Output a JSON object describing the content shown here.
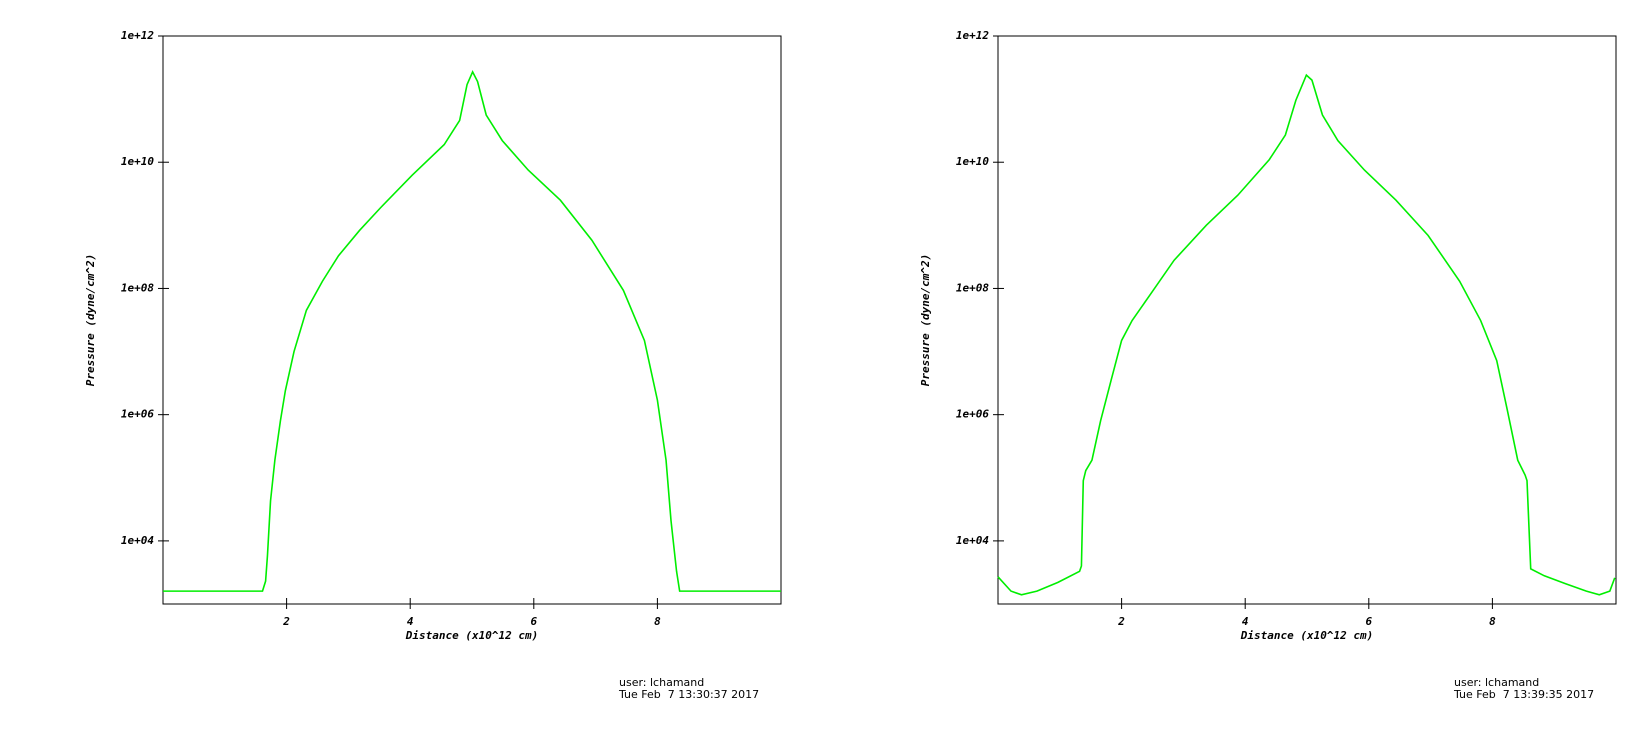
{
  "chart_data": [
    {
      "type": "line",
      "xlabel": "Distance (x10^12 cm)",
      "ylabel": "Pressure (dyne/cm^2)",
      "log_y": true,
      "xlim": [
        0,
        10
      ],
      "ylim": [
        1000,
        1000000000000.0
      ],
      "xticks": [
        2,
        4,
        6,
        8
      ],
      "yticks": [
        {
          "value": 10000,
          "label": "1e+04"
        },
        {
          "value": 1000000,
          "label": "1e+06"
        },
        {
          "value": 100000000,
          "label": "1e+08"
        },
        {
          "value": 10000000000,
          "label": "1e+10"
        },
        {
          "value": 1000000000000,
          "label": "1e+12"
        }
      ],
      "x": [
        0,
        1.61,
        1.66,
        1.69,
        1.74,
        1.81,
        1.9,
        1.98,
        2.12,
        2.32,
        2.58,
        2.84,
        3.18,
        3.52,
        4.03,
        4.55,
        4.8,
        4.92,
        5.01,
        5.09,
        5.23,
        5.49,
        5.91,
        6.43,
        6.94,
        7.45,
        7.79,
        8.0,
        8.14,
        8.22,
        8.31,
        8.36,
        10
      ],
      "series": [
        {
          "color": "#00ee00",
          "values": [
            1600,
            1600,
            2300,
            5800,
            43000,
            190000,
            800000,
            2400000,
            10000000,
            45000000,
            130000000,
            330000000,
            830000000,
            1900000000,
            6200000000,
            19000000000,
            46000000000,
            170000000000,
            270000000000,
            190000000000,
            56000000000,
            22000000000,
            7500000000,
            2500000000,
            580000000,
            93000000,
            15000000,
            1700000,
            190000,
            21000,
            3300,
            1600,
            1600
          ]
        }
      ],
      "user": "user: lchamand",
      "timestamp": "Tue Feb  7 13:30:37 2017"
    },
    {
      "type": "line",
      "xlabel": "Distance (x10^12 cm)",
      "ylabel": "Pressure (dyne/cm^2)",
      "log_y": true,
      "xlim": [
        0,
        10
      ],
      "ylim": [
        1000,
        1000000000000.0
      ],
      "xticks": [
        2,
        4,
        6,
        8
      ],
      "yticks": [
        {
          "value": 10000,
          "label": "1e+04"
        },
        {
          "value": 1000000,
          "label": "1e+06"
        },
        {
          "value": 100000000,
          "label": "1e+08"
        },
        {
          "value": 10000000000,
          "label": "1e+10"
        },
        {
          "value": 1000000000000,
          "label": "1e+12"
        }
      ],
      "x": [
        0,
        0.21,
        0.38,
        0.63,
        0.97,
        1.32,
        1.35,
        1.38,
        1.42,
        1.52,
        1.66,
        1.83,
        2.0,
        2.17,
        2.51,
        2.85,
        3.37,
        3.88,
        4.39,
        4.65,
        4.82,
        4.99,
        5.08,
        5.25,
        5.5,
        5.93,
        6.44,
        6.96,
        7.47,
        7.81,
        8.07,
        8.24,
        8.41,
        8.53,
        8.56,
        8.62,
        8.84,
        9.18,
        9.52,
        9.73,
        9.9,
        9.98
      ],
      "series": [
        {
          "color": "#00ee00",
          "values": [
            2700,
            1600,
            1400,
            1600,
            2200,
            3300,
            4000,
            90000,
            130000,
            190000,
            800000,
            3500000,
            15000000,
            31000000,
            93000000,
            280000000,
            1000000000,
            3000000000,
            11000000000,
            27000000000,
            96000000000,
            240000000000,
            200000000000,
            56000000000,
            22000000000,
            7500000000,
            2500000000,
            690000000,
            130000000,
            31000000,
            7200000,
            1200000,
            190000,
            110000,
            90000,
            3600,
            2800,
            2100,
            1600,
            1400,
            1600,
            2600
          ]
        }
      ],
      "user": "user: lchamand",
      "timestamp": "Tue Feb  7 13:39:35 2017"
    }
  ]
}
